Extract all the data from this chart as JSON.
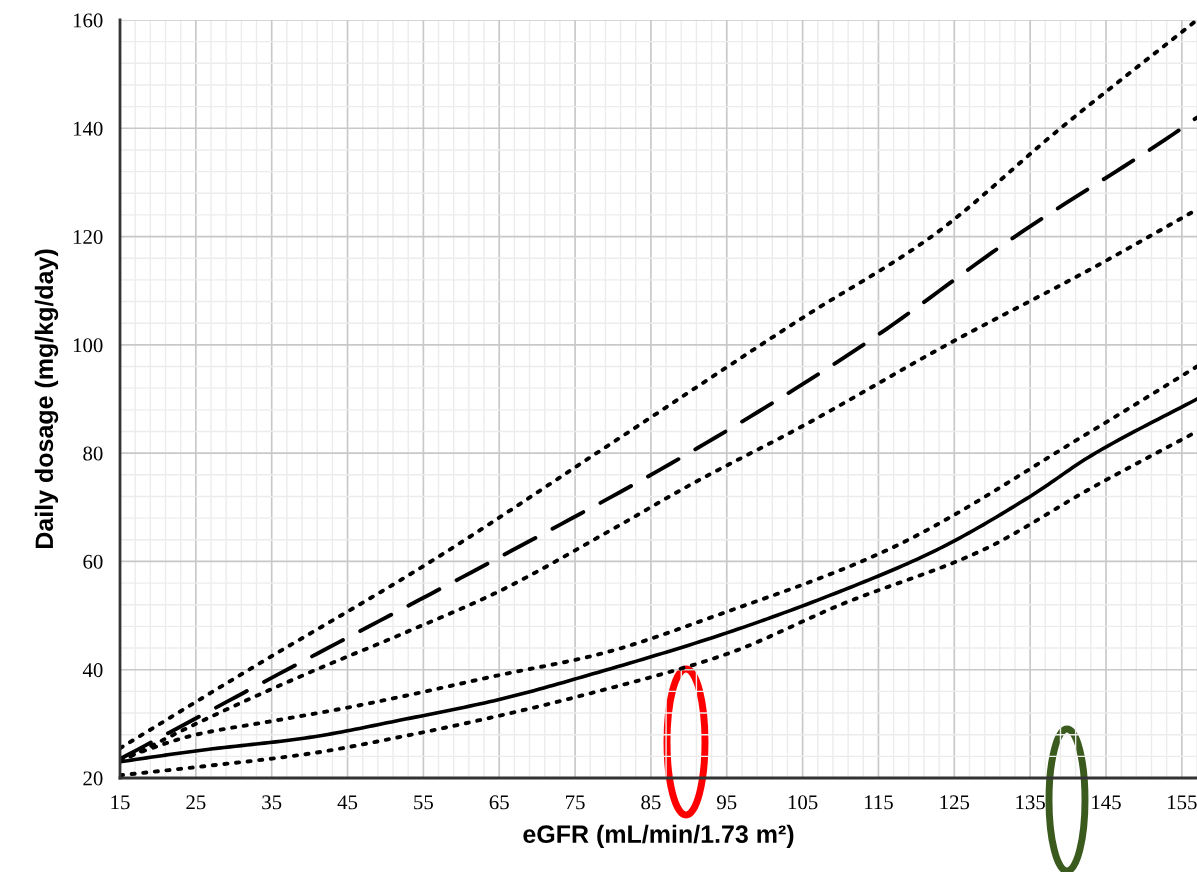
{
  "chart_data": {
    "type": "line",
    "xlabel": "eGFR (mL/min/1.73 m²)",
    "ylabel": "Daily dosage (mg/kg/day)",
    "xlim": [
      15,
      157
    ],
    "xticks": [
      15,
      25,
      35,
      45,
      55,
      65,
      75,
      85,
      95,
      105,
      115,
      125,
      135,
      145,
      155
    ],
    "ylim": [
      20,
      160
    ],
    "yticks": [
      20,
      40,
      60,
      80,
      100,
      120,
      140,
      160
    ],
    "grid": true,
    "series": [
      {
        "color": "#000000",
        "line_style": "dotted",
        "x": [
          15,
          32,
          56,
          80,
          105,
          122,
          139,
          157
        ],
        "values": [
          25.5,
          40,
          60,
          82,
          105,
          120,
          140,
          160
        ]
      },
      {
        "color": "#000000",
        "line_style": "dashed",
        "x": [
          15,
          37,
          64,
          90,
          113,
          133,
          155,
          157
        ],
        "values": [
          23.5,
          40,
          60,
          80,
          100,
          120,
          140,
          142
        ]
      },
      {
        "color": "#000000",
        "line_style": "dotted",
        "x": [
          15,
          25,
          40,
          52,
          65,
          80,
          90,
          105,
          124,
          143,
          157
        ],
        "values": [
          23,
          30,
          39.5,
          46.5,
          54.5,
          66,
          74,
          85,
          100,
          114,
          125
        ]
      },
      {
        "color": "#000000",
        "line_style": "dotted",
        "x": [
          15,
          25,
          35,
          45,
          52,
          65,
          78,
          95,
          116,
          143,
          157
        ],
        "values": [
          23.5,
          28,
          30.5,
          33,
          35,
          39,
          42.8,
          50.7,
          62,
          84,
          96
        ]
      },
      {
        "color": "#000000",
        "line_style": "solid",
        "x": [
          15,
          25,
          40,
          52,
          65,
          78,
          95,
          110,
          122.5,
          135,
          143,
          157
        ],
        "values": [
          23,
          25,
          27.5,
          30.7,
          34.5,
          39.5,
          46.8,
          54.5,
          62,
          72,
          79.5,
          90
        ]
      },
      {
        "color": "#000000",
        "line_style": "dotted",
        "x": [
          15,
          25,
          40,
          52,
          65,
          78,
          95,
          110,
          128.6,
          143,
          157
        ],
        "values": [
          20.5,
          22,
          24.5,
          27.6,
          31.5,
          36,
          42.9,
          52,
          62,
          73.5,
          84
        ]
      }
    ]
  }
}
